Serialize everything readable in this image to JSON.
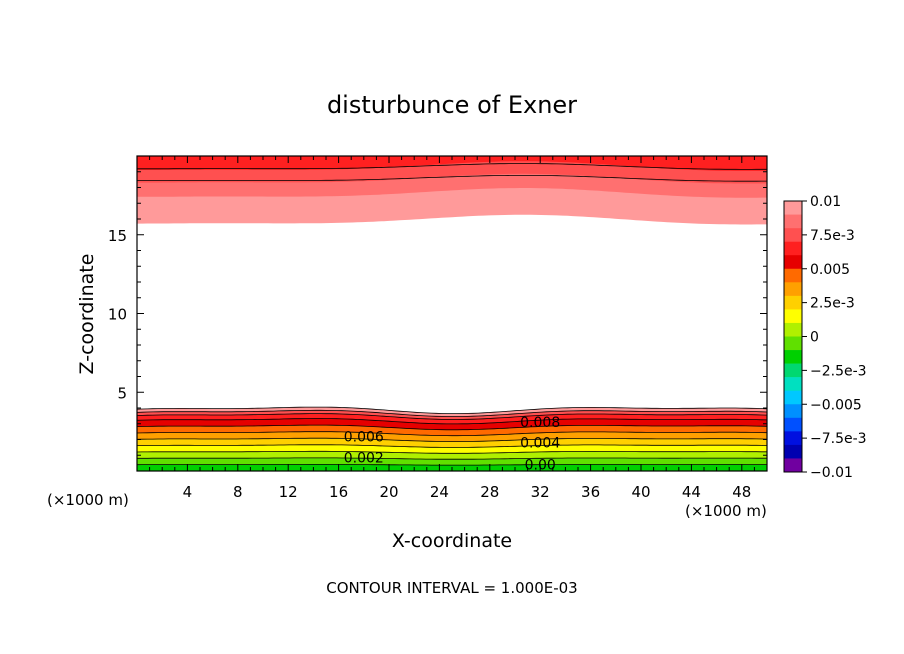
{
  "chart_data": {
    "type": "contour",
    "title": "disturbunce of Exner",
    "xlabel": "X-coordinate",
    "ylabel": "Z-coordinate",
    "x_unit": "(×1000 m)",
    "z_unit": "(×1000 m)",
    "footer": "CONTOUR INTERVAL = 1.000E-03",
    "xlim": [
      0,
      50
    ],
    "ylim": [
      0,
      20
    ],
    "x_ticks": [
      4,
      8,
      12,
      16,
      20,
      24,
      28,
      32,
      36,
      40,
      44,
      48
    ],
    "y_ticks": [
      5,
      10,
      15
    ],
    "contour_interval": 0.001,
    "colorbar": {
      "labels": [
        "0.01",
        "7.5e-3",
        "0.005",
        "2.5e-3",
        "0",
        "−2.5e-3",
        "−0.005",
        "−7.5e-3",
        "−0.01"
      ],
      "colors": [
        "#ff9a9a",
        "#ff7070",
        "#ff5050",
        "#ff2020",
        "#e60000",
        "#ff6a00",
        "#ffa000",
        "#ffd000",
        "#ffff00",
        "#b0f000",
        "#60e000",
        "#00d000",
        "#00d870",
        "#00e0c0",
        "#00c8ff",
        "#0090ff",
        "#0050ff",
        "#0010e0",
        "#0000b0",
        "#7000a0"
      ]
    },
    "contour_labels": [
      {
        "text": "0.008",
        "x": 32,
        "z": 3.1
      },
      {
        "text": "0.006",
        "x": 18,
        "z": 2.2
      },
      {
        "text": "0.004",
        "x": 32,
        "z": 1.8
      },
      {
        "text": "0.002",
        "x": 18,
        "z": 0.85
      },
      {
        "text": "0.00",
        "x": 32,
        "z": 0.4
      }
    ],
    "lower_bands": [
      {
        "color": "#00d000",
        "top": 0.4
      },
      {
        "color": "#60e000",
        "top": 0.8
      },
      {
        "color": "#b0f000",
        "top": 1.2
      },
      {
        "color": "#ffff00",
        "top": 1.6
      },
      {
        "color": "#ffd000",
        "top": 2.0
      },
      {
        "color": "#ffa000",
        "top": 2.4
      },
      {
        "color": "#ff6a00",
        "top": 2.8
      },
      {
        "color": "#e60000",
        "top": 3.2
      },
      {
        "color": "#ff2020",
        "top": 3.5
      },
      {
        "color": "#ff5050",
        "top": 3.7
      },
      {
        "color": "#ff9a9a",
        "top": 3.9
      }
    ],
    "upper_bands": [
      {
        "color": "#ff9a9a",
        "bottom": 15.9
      },
      {
        "color": "#ff7070",
        "bottom": 17.6
      },
      {
        "color": "#ff5050",
        "bottom": 18.5
      },
      {
        "color": "#ff2020",
        "bottom": 19.3
      }
    ]
  }
}
